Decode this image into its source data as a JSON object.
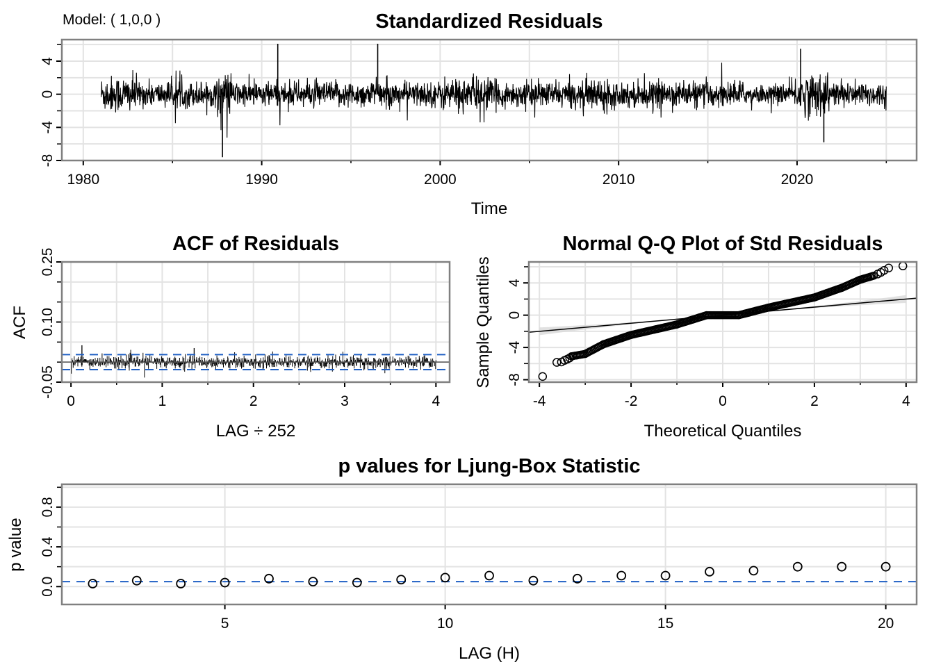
{
  "model_label": "Model: ( 1,0,0 )",
  "colors": {
    "series": "#000000",
    "grid": "#e3e3e3",
    "frame": "#808080",
    "bound": "#1f5fc4",
    "band": "#d9d9d9"
  },
  "chart_data": [
    {
      "type": "line",
      "title": "Standardized Residuals",
      "xlabel": "Time",
      "ylabel": "",
      "xlim": [
        1978.8,
        2026.7
      ],
      "ylim": [
        -8,
        6.6
      ],
      "xticks": [
        "1980",
        "1990",
        "2000",
        "2010",
        "2020"
      ],
      "xtick_values": [
        1980,
        1990,
        2000,
        2010,
        2020
      ],
      "yticks": [
        "-8",
        "-4",
        "0",
        "4"
      ],
      "ytick_values": [
        -8,
        -4,
        0,
        4
      ],
      "series_range": {
        "start": 1981.0,
        "end": 2025.0
      },
      "notable_extremes": [
        {
          "x": 1987.8,
          "y": -7.6
        },
        {
          "x": 1990.9,
          "y": 6.1
        },
        {
          "x": 1996.5,
          "y": 6.1
        },
        {
          "x": 2020.2,
          "y": 5.5
        },
        {
          "x": 2021.5,
          "y": -5.8
        }
      ],
      "grid": true
    },
    {
      "type": "bar",
      "title": "ACF of Residuals",
      "xlabel": "LAG ÷ 252",
      "ylabel": "ACF",
      "xlim": [
        -0.1,
        4.15
      ],
      "ylim": [
        -0.05,
        0.25
      ],
      "xticks": [
        "0",
        "1",
        "2",
        "3",
        "4"
      ],
      "xtick_values": [
        0,
        1,
        2,
        3,
        4
      ],
      "yticks": [
        "-0.05",
        "0.10",
        "0.25"
      ],
      "ytick_values": [
        -0.05,
        0.1,
        0.25
      ],
      "confidence_bounds": [
        -0.0187,
        0.0187
      ],
      "max_lag": 4.0,
      "notable_spikes": [
        {
          "x": 0.12,
          "y": 0.042
        },
        {
          "x": 1.35,
          "y": 0.035
        }
      ],
      "grid": true
    },
    {
      "type": "scatter",
      "title": "Normal Q-Q Plot of Std Residuals",
      "xlabel": "Theoretical Quantiles",
      "ylabel": "Sample Quantiles",
      "xlim": [
        -4.23,
        4.23
      ],
      "ylim": [
        -8.3,
        6.6
      ],
      "xticks": [
        "-4",
        "-2",
        "0",
        "2",
        "4"
      ],
      "xtick_values": [
        -4,
        -2,
        0,
        2,
        4
      ],
      "yticks": [
        "-8",
        "-4",
        "0",
        "4"
      ],
      "ytick_values": [
        -8,
        -4,
        0,
        4
      ],
      "reference_line": {
        "slope": 0.5,
        "intercept": 0.0
      },
      "curve": [
        {
          "x": -3.3,
          "y": -5.1
        },
        {
          "x": -3.0,
          "y": -4.8
        },
        {
          "x": -2.6,
          "y": -3.6
        },
        {
          "x": -2.0,
          "y": -2.45
        },
        {
          "x": -1.0,
          "y": -1.15
        },
        {
          "x": -0.35,
          "y": 0.0
        },
        {
          "x": 0.35,
          "y": 0.0
        },
        {
          "x": 1.0,
          "y": 0.95
        },
        {
          "x": 2.0,
          "y": 2.2
        },
        {
          "x": 2.6,
          "y": 3.4
        },
        {
          "x": 3.0,
          "y": 4.4
        },
        {
          "x": 3.3,
          "y": 4.9
        }
      ],
      "tail_points": [
        {
          "x": -3.93,
          "y": -7.6
        },
        {
          "x": -3.62,
          "y": -5.85
        },
        {
          "x": -3.52,
          "y": -5.8
        },
        {
          "x": -3.45,
          "y": -5.6
        },
        {
          "x": -3.39,
          "y": -5.45
        },
        {
          "x": -3.34,
          "y": -5.3
        },
        {
          "x": 3.38,
          "y": 5.1
        },
        {
          "x": 3.45,
          "y": 5.3
        },
        {
          "x": 3.52,
          "y": 5.55
        },
        {
          "x": 3.62,
          "y": 5.85
        },
        {
          "x": 3.93,
          "y": 6.1
        }
      ],
      "grid": true
    },
    {
      "type": "scatter",
      "title": "p values for Ljung-Box Statistic",
      "xlabel": "LAG (H)",
      "ylabel": "p value",
      "xlim": [
        1.3,
        20.7
      ],
      "ylim": [
        -0.18,
        1.03
      ],
      "xticks": [
        "5",
        "10",
        "15",
        "20"
      ],
      "xtick_values": [
        5,
        10,
        15,
        20
      ],
      "yticks": [
        "0.0",
        "0.4",
        "0.8"
      ],
      "ytick_values": [
        0.0,
        0.4,
        0.8
      ],
      "significance_line": 0.05,
      "x": [
        2,
        3,
        4,
        5,
        6,
        7,
        8,
        9,
        10,
        11,
        12,
        13,
        14,
        15,
        16,
        17,
        18,
        19,
        20
      ],
      "values": [
        0.03,
        0.06,
        0.03,
        0.04,
        0.08,
        0.05,
        0.04,
        0.07,
        0.09,
        0.11,
        0.06,
        0.08,
        0.11,
        0.11,
        0.15,
        0.16,
        0.2,
        0.2,
        0.2
      ],
      "grid": true
    }
  ]
}
